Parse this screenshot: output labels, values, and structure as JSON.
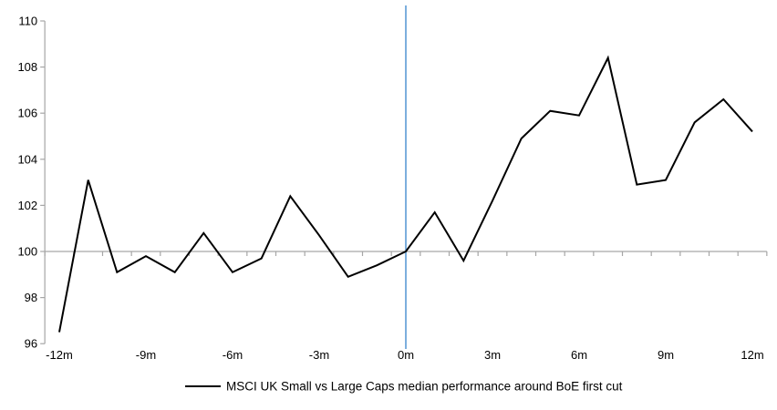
{
  "chart_data": {
    "type": "line",
    "title": "",
    "xlabel": "",
    "ylabel": "",
    "x_unit": "months relative to first cut",
    "x": [
      -12,
      -11,
      -10,
      -9,
      -8,
      -7,
      -6,
      -5,
      -4,
      -3,
      -2,
      -1,
      0,
      1,
      2,
      3,
      4,
      5,
      6,
      7,
      8,
      9,
      10,
      11,
      12
    ],
    "series": [
      {
        "name": "MSCI UK Small vs Large Caps median performance around BoE first cut",
        "values": [
          96.5,
          103.1,
          99.1,
          99.8,
          99.1,
          100.8,
          99.1,
          99.7,
          102.4,
          100.7,
          98.9,
          99.4,
          100.0,
          101.7,
          99.6,
          102.2,
          104.9,
          106.1,
          105.9,
          108.4,
          102.9,
          103.1,
          105.6,
          106.6,
          105.2
        ]
      }
    ],
    "x_tick_labels": [
      "-12m",
      "-9m",
      "-6m",
      "-3m",
      "0m",
      "3m",
      "6m",
      "9m",
      "12m"
    ],
    "x_tick_months": [
      -12,
      -9,
      -6,
      -3,
      0,
      3,
      6,
      9,
      12
    ],
    "y_ticks": [
      96,
      98,
      100,
      102,
      104,
      106,
      108,
      110
    ],
    "ylim": [
      96,
      110
    ],
    "xlim": [
      -12.5,
      12.5
    ],
    "baseline_value": 100,
    "event_line_x": 0,
    "grid": "horizontal line at 100 only",
    "legend_position": "bottom-center",
    "colors": {
      "series_line": "#000000",
      "event_line": "#5B9BD5",
      "axis": "#A6A6A6",
      "text": "#000000",
      "background": "#FFFFFF"
    }
  }
}
